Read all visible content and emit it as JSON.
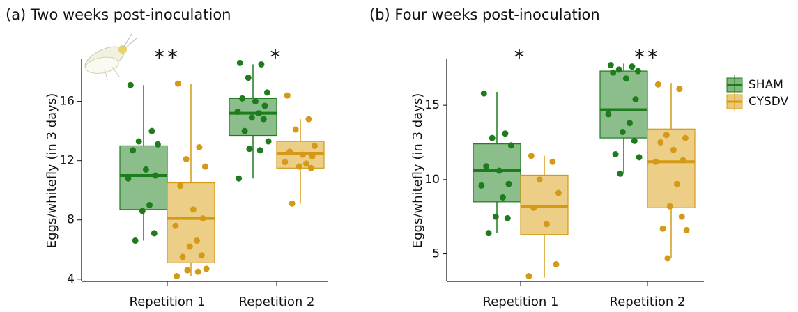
{
  "chart_data": [
    {
      "type": "box",
      "title": "(a) Two weeks post-inoculation",
      "y_label": "Eggs/whitefly (in 3 days)",
      "categories": [
        "Repetition 1",
        "Repetition 2"
      ],
      "ylim": [
        3.85,
        18.85
      ],
      "yticks": [
        4,
        8,
        12,
        16
      ],
      "annotations": [
        "**",
        "*"
      ],
      "series": [
        {
          "color": "#1e7b1e",
          "fill": "#7fb77f",
          "boxes": [
            {
              "low": 6.6,
              "q1": 8.7,
              "median": 11.0,
              "q3": 13.0,
              "high": 17.1
            },
            {
              "low": 10.8,
              "q1": 13.7,
              "median": 15.2,
              "q3": 16.2,
              "high": 18.5
            }
          ],
          "points": [
            [
              17.1,
              14.0,
              13.3,
              13.1,
              12.7,
              11.4,
              11.0,
              10.8,
              9.0,
              8.6,
              7.1,
              6.6
            ],
            [
              18.6,
              18.5,
              17.6,
              16.6,
              16.2,
              16.0,
              15.7,
              15.3,
              15.2,
              14.9,
              14.8,
              14.0,
              13.3,
              12.8,
              12.7,
              10.8
            ]
          ]
        },
        {
          "color": "#d49a17",
          "fill": "#ebc97a",
          "boxes": [
            {
              "low": 4.2,
              "q1": 5.1,
              "median": 8.1,
              "q3": 10.5,
              "high": 17.2
            },
            {
              "low": 9.1,
              "q1": 11.5,
              "median": 12.5,
              "q3": 13.3,
              "high": 14.8
            }
          ],
          "points": [
            [
              17.2,
              12.9,
              12.1,
              11.6,
              10.3,
              8.7,
              8.1,
              7.6,
              6.6,
              6.2,
              5.6,
              5.5,
              4.7,
              4.6,
              4.5,
              4.2
            ],
            [
              16.4,
              14.8,
              14.1,
              13.0,
              12.6,
              12.4,
              12.3,
              11.9,
              11.8,
              11.6,
              11.5,
              9.1
            ]
          ]
        }
      ]
    },
    {
      "type": "box",
      "title": "(b) Four weeks post-inoculation",
      "y_label": "Eggs/whitefly (in 3 days)",
      "categories": [
        "Repetition 1",
        "Repetition 2"
      ],
      "ylim": [
        3.15,
        18.1
      ],
      "yticks": [
        5,
        10,
        15
      ],
      "annotations": [
        "*",
        "**"
      ],
      "legend": "right",
      "series": [
        {
          "name": "SHAM",
          "color": "#1e7b1e",
          "fill": "#7fb77f",
          "boxes": [
            {
              "low": 6.4,
              "q1": 8.5,
              "median": 10.6,
              "q3": 12.4,
              "high": 15.9
            },
            {
              "low": 10.4,
              "q1": 12.8,
              "median": 14.7,
              "q3": 17.3,
              "high": 17.8
            }
          ],
          "points": [
            [
              15.8,
              13.1,
              12.8,
              12.3,
              10.9,
              10.6,
              9.7,
              9.6,
              8.8,
              7.5,
              7.4,
              6.4
            ],
            [
              17.7,
              17.6,
              17.4,
              17.3,
              17.2,
              16.8,
              15.4,
              14.4,
              13.8,
              13.2,
              12.6,
              11.7,
              11.5,
              10.4
            ]
          ]
        },
        {
          "name": "CYSDV",
          "color": "#d49a17",
          "fill": "#ebc97a",
          "boxes": [
            {
              "low": 3.4,
              "q1": 6.3,
              "median": 8.2,
              "q3": 10.3,
              "high": 11.6
            },
            {
              "low": 4.7,
              "q1": 8.1,
              "median": 11.2,
              "q3": 13.4,
              "high": 16.5
            }
          ],
          "points": [
            [
              11.6,
              11.2,
              10.0,
              9.1,
              8.1,
              7.0,
              4.3,
              3.5
            ],
            [
              16.4,
              16.1,
              13.0,
              12.8,
              12.5,
              12.0,
              11.3,
              11.2,
              9.7,
              8.2,
              7.5,
              6.7,
              6.6,
              4.7
            ]
          ]
        }
      ]
    }
  ]
}
